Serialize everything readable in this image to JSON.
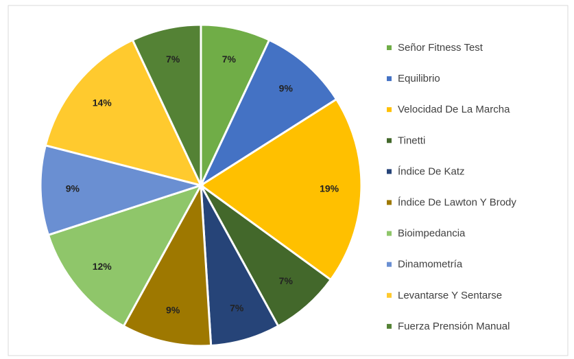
{
  "chart_data": {
    "type": "pie",
    "categories": [
      "Señor Fitness Test",
      "Equilibrio",
      "Velocidad De La Marcha",
      "Tinetti",
      "Índice De Katz",
      "Índice De Lawton Y Brody",
      "Bioimpedancia",
      "Dinamometría",
      "Levantarse Y Sentarse",
      "Fuerza Prensión Manual"
    ],
    "values": [
      7,
      9,
      19,
      7,
      7,
      9,
      12,
      9,
      14,
      7
    ],
    "value_labels": [
      "7%",
      "9%",
      "19%",
      "7%",
      "7%",
      "9%",
      "12%",
      "9%",
      "14%",
      "7%"
    ],
    "colors": [
      "#70ad47",
      "#4472c4",
      "#ffc000",
      "#43682b",
      "#264478",
      "#9e7800",
      "#8fc66a",
      "#6a8fd2",
      "#ffca2e",
      "#548235"
    ],
    "legend": "right"
  }
}
